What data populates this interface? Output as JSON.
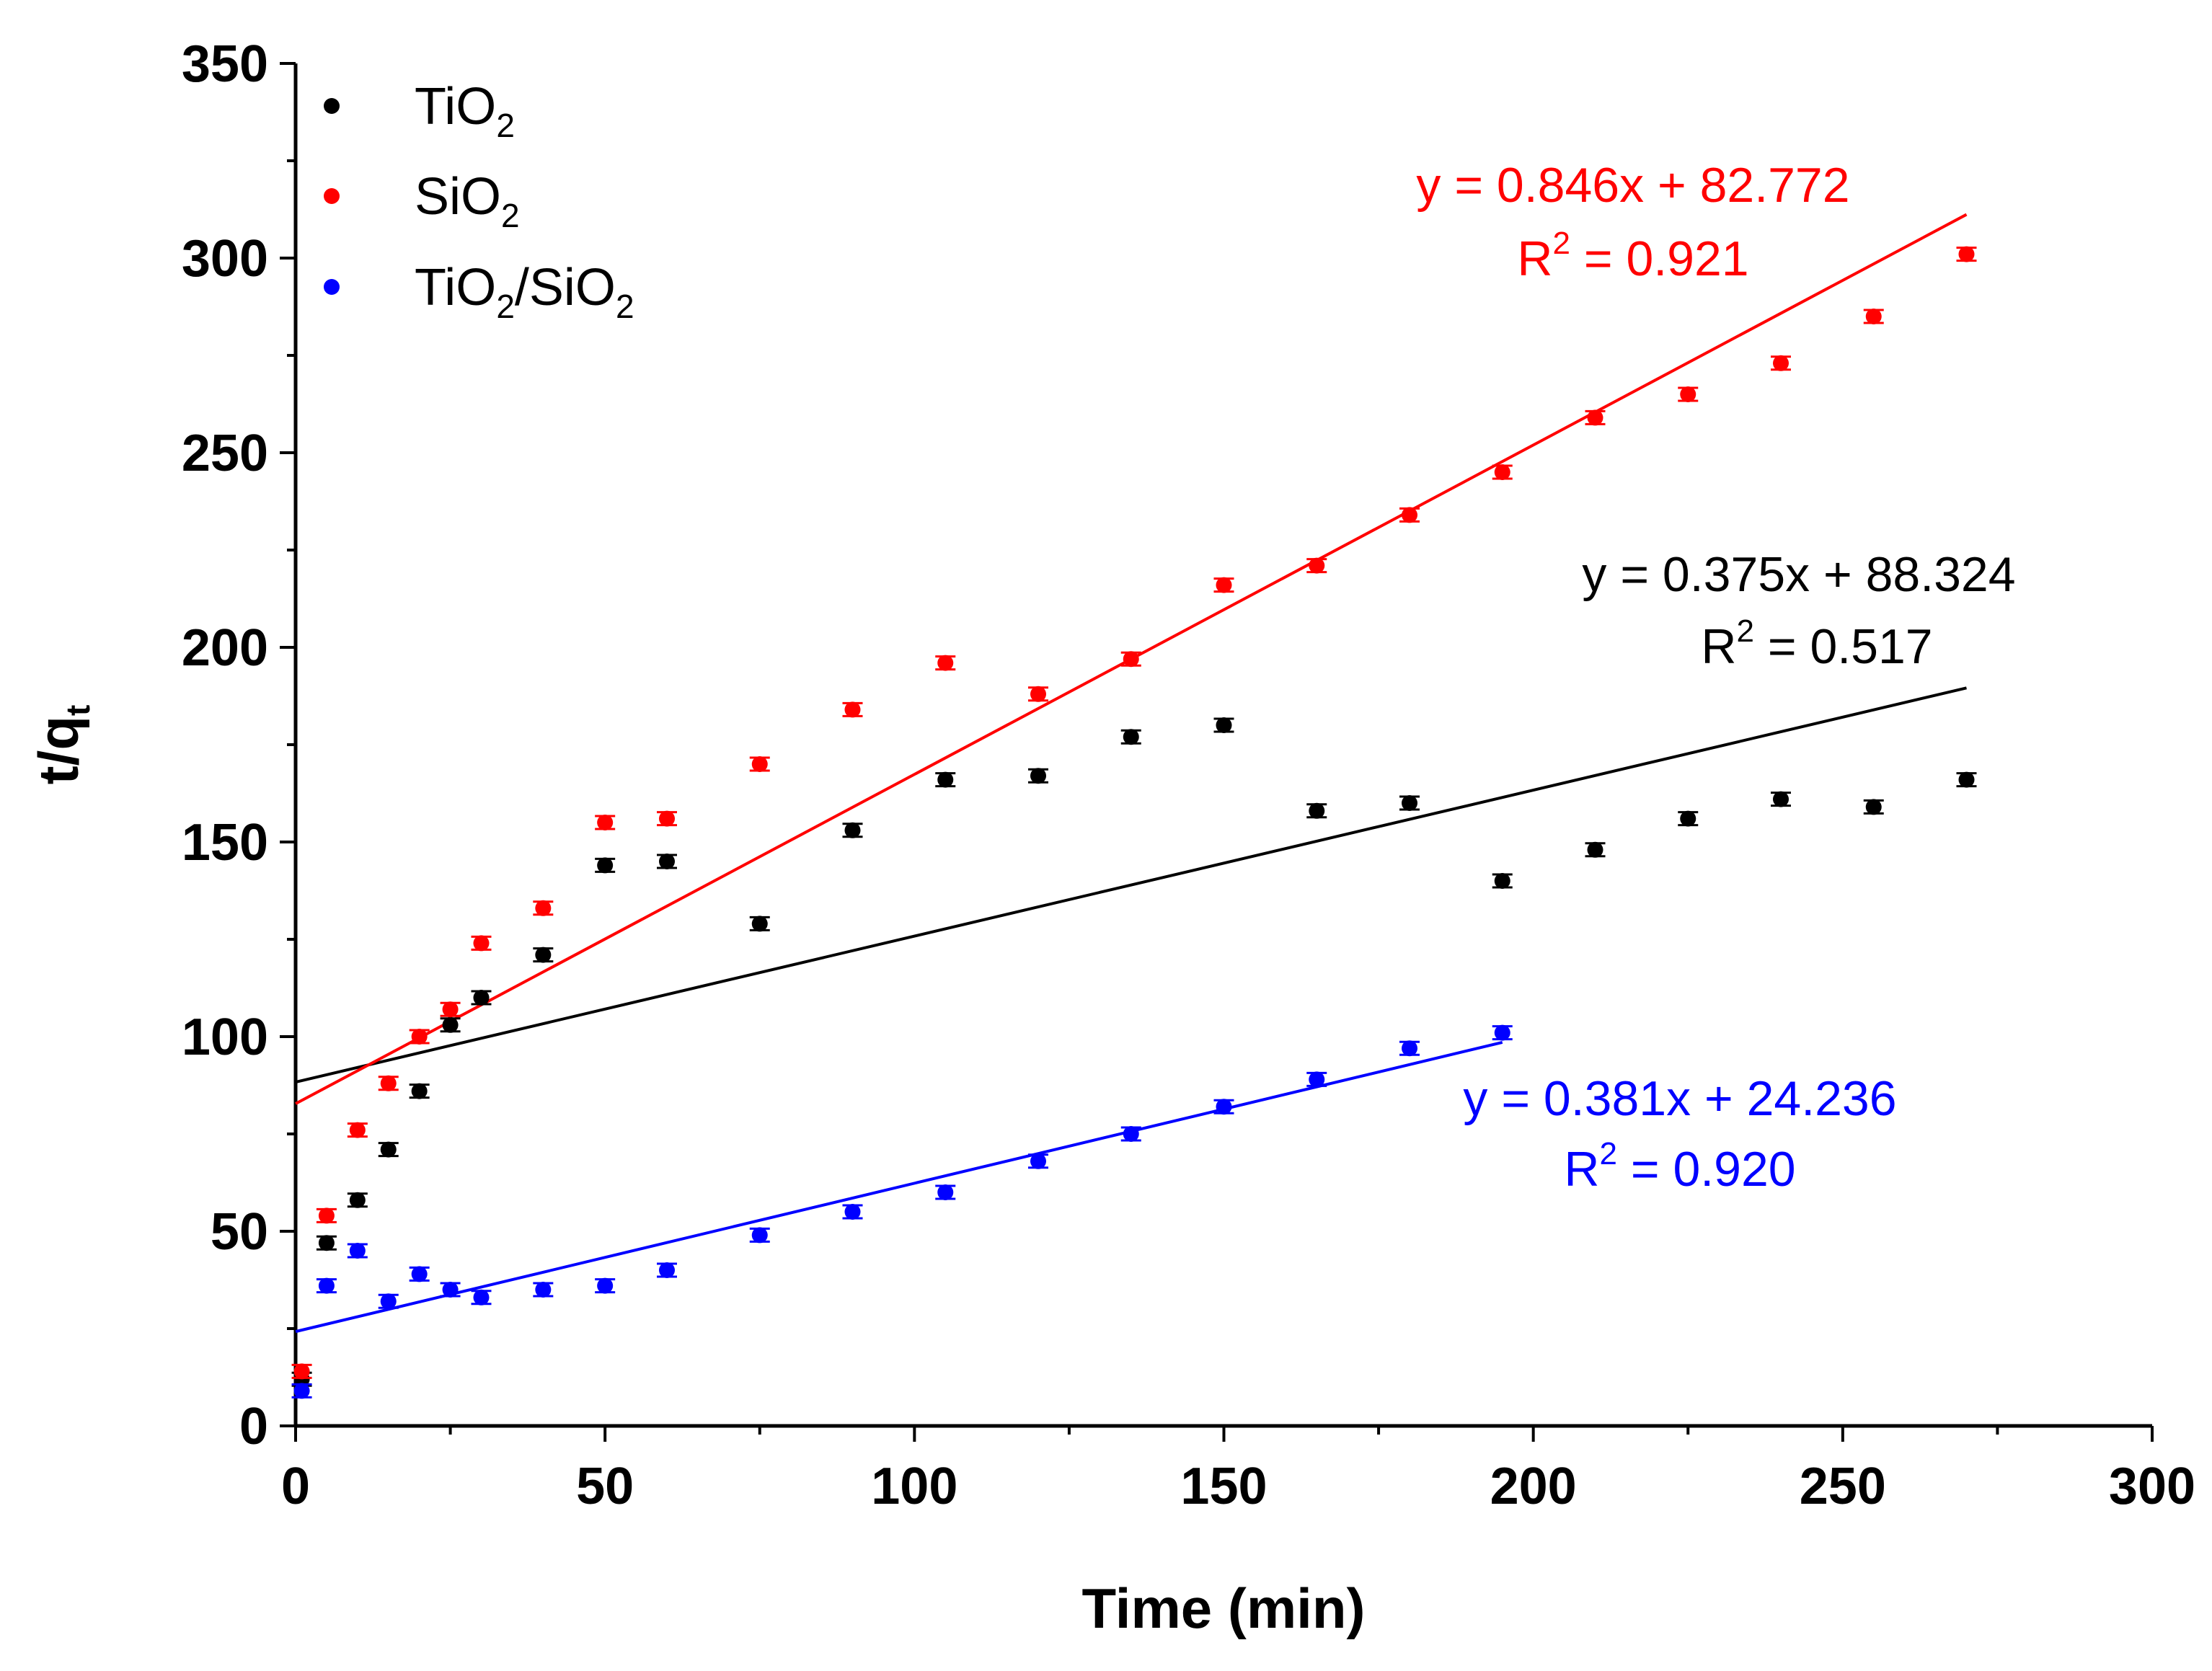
{
  "chart_data": {
    "type": "scatter",
    "xlabel": "Time (min)",
    "ylabel": {
      "main": "t/q",
      "sub": "t"
    },
    "xlim": [
      0,
      300
    ],
    "ylim": [
      0,
      350
    ],
    "x_ticks": [
      "0",
      "50",
      "100",
      "150",
      "200",
      "250",
      "300"
    ],
    "y_ticks": [
      "0",
      "50",
      "100",
      "150",
      "200",
      "250",
      "300",
      "350"
    ],
    "legend_position": "top-left",
    "series": [
      {
        "name": "TiO2",
        "label_parts": [
          {
            "t": "TiO"
          },
          {
            "t": "2",
            "sub": true
          }
        ],
        "color": "#000000",
        "x": [
          1,
          5,
          10,
          15,
          20,
          25,
          30,
          40,
          50,
          60,
          75,
          90,
          105,
          120,
          135,
          150,
          165,
          180,
          195,
          210,
          225,
          240,
          255,
          270
        ],
        "y": [
          12,
          47,
          58,
          71,
          86,
          103,
          110,
          121,
          144,
          145,
          129,
          153,
          166,
          167,
          177,
          180,
          158,
          160,
          140,
          148,
          156,
          161,
          159,
          166
        ],
        "fit": {
          "slope": 0.375,
          "intercept": 88.324,
          "x_range": [
            0,
            270
          ],
          "equation": "y = 0.375x + 88.324",
          "r2_prefix": "R",
          "r2_exp": "2",
          "r2_value": " = 0.517"
        }
      },
      {
        "name": "SiO2",
        "label_parts": [
          {
            "t": "SiO"
          },
          {
            "t": "2",
            "sub": true
          }
        ],
        "color": "#ff0000",
        "x": [
          1,
          5,
          10,
          15,
          20,
          25,
          30,
          40,
          50,
          60,
          75,
          90,
          105,
          120,
          135,
          150,
          165,
          180,
          195,
          210,
          225,
          240,
          255,
          270
        ],
        "y": [
          14,
          54,
          76,
          88,
          100,
          107,
          124,
          133,
          155,
          156,
          170,
          184,
          196,
          188,
          197,
          216,
          221,
          234,
          245,
          259,
          265,
          273,
          285,
          301
        ],
        "fit": {
          "slope": 0.846,
          "intercept": 82.772,
          "x_range": [
            0,
            270
          ],
          "equation": "y = 0.846x + 82.772",
          "r2_prefix": "R",
          "r2_exp": "2",
          "r2_value": " = 0.921"
        }
      },
      {
        "name": "TiO2/SiO2",
        "label_parts": [
          {
            "t": "TiO"
          },
          {
            "t": "2",
            "sub": true
          },
          {
            "t": "/SiO"
          },
          {
            "t": "2",
            "sub": true
          }
        ],
        "color": "#0000ff",
        "x": [
          1,
          5,
          10,
          15,
          20,
          25,
          30,
          40,
          50,
          60,
          75,
          90,
          105,
          120,
          135,
          150,
          165,
          180,
          195
        ],
        "y": [
          9,
          36,
          45,
          32,
          39,
          35,
          33,
          35,
          36,
          40,
          49,
          55,
          60,
          68,
          75,
          82,
          89,
          97,
          101
        ],
        "fit": {
          "slope": 0.381,
          "intercept": 24.236,
          "x_range": [
            0,
            195
          ],
          "equation": "y = 0.381x + 24.236",
          "r2_prefix": "R",
          "r2_exp": "2",
          "r2_value": " = 0.920"
        }
      }
    ]
  }
}
